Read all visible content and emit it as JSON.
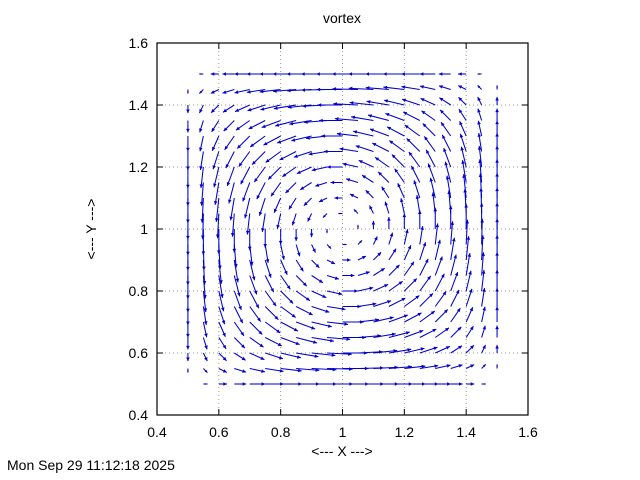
{
  "window": {
    "background": "#ffffff"
  },
  "timestamp": "Mon Sep 29 11:12:18 2025",
  "chart_data": {
    "type": "vector",
    "title": "vortex",
    "xlabel": "<--- X --->",
    "ylabel": "<--- Y --->",
    "xlim": [
      0.4,
      1.6
    ],
    "ylim": [
      0.4,
      1.6
    ],
    "x_tick_values": [
      0.4,
      0.6,
      0.8,
      1.0,
      1.2,
      1.4,
      1.6
    ],
    "x_tick_labels": [
      "0.4",
      "0.6",
      "0.8",
      "1",
      "1.2",
      "1.4",
      "1.6"
    ],
    "y_tick_values": [
      0.4,
      0.6,
      0.8,
      1.0,
      1.2,
      1.4,
      1.6
    ],
    "y_tick_labels": [
      "0.4",
      "0.6",
      "0.8",
      "1",
      "1.2",
      "1.4",
      "1.6"
    ],
    "grid": {
      "visible": true,
      "style": "dotted",
      "color": "#999999"
    },
    "legend": "none",
    "border_color": "#000000",
    "vector_field": {
      "description": "Single counterclockwise vortex cell centered at (1,1); velocity u = S*sin(pi*(x-0.5))*cos(pi*(y-0.5)), v = -S*cos(pi*(x-0.5))*sin(pi*(y-0.5)); zero at center and at the four corners, maximal tangential speed at the mid-edges of the square [0.5,1.5]x[0.5,1.5]",
      "rotation": "counterclockwise",
      "center": [
        1.0,
        1.0
      ],
      "grid_x": {
        "start": 0.5,
        "end": 1.5,
        "step": 0.05
      },
      "grid_y": {
        "start": 0.5,
        "end": 1.5,
        "step": 0.05
      },
      "arrow_scale": 0.085,
      "color": "#0000cd"
    }
  }
}
